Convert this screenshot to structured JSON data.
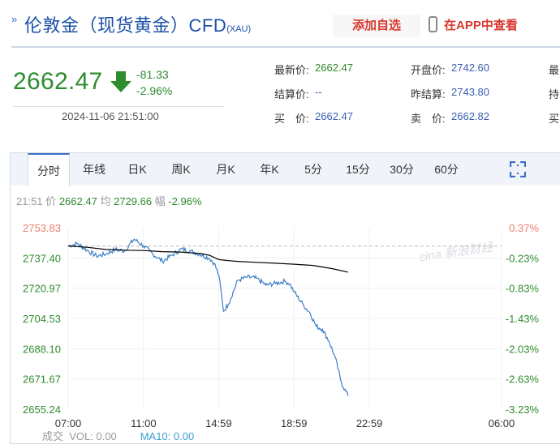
{
  "header": {
    "title": "伦敦金（现货黄金）CFD",
    "subtitle": "(XAU)",
    "add_watch_label": "添加自选",
    "app_label": "在APP中查看"
  },
  "quote": {
    "price": "2662.47",
    "change": "-81.33",
    "change_pct": "-2.96%",
    "datetime": "2024-11-06 21:51:00",
    "fields": [
      {
        "label": "最新价:",
        "value": "2662.47"
      },
      {
        "label": "开盘价:",
        "value": "2742.60"
      },
      {
        "label": "结算价:",
        "value": "--"
      },
      {
        "label": "昨结算:",
        "value": "2743.80"
      },
      {
        "label": "买　价:",
        "value": "2662.47"
      },
      {
        "label": "卖　价:",
        "value": "2662.82"
      }
    ],
    "cutoff_labels": [
      "最",
      "持",
      "买"
    ]
  },
  "tabs": [
    "分时",
    "年线",
    "日K",
    "周K",
    "月K",
    "年K",
    "5分",
    "15分",
    "30分",
    "60分"
  ],
  "active_tab": "分时",
  "infobar": {
    "time": "21:51",
    "price_label": "价",
    "price": "2662.47",
    "avg_label": "均",
    "avg": "2729.66",
    "amp_label": "幅",
    "amp": "-2.96%"
  },
  "watermark": "sina 新浪财经",
  "bottom": {
    "chengjiao": "成交",
    "vol": "VOL: 0.00",
    "ma10": "MA10: 0.00"
  },
  "colors": {
    "up": "#e8806e",
    "down": "#2e8b2e",
    "price_line": "#3b7ec7",
    "avg_line": "#000000"
  },
  "chart_data": {
    "type": "line",
    "x_ticks": [
      "07:00",
      "11:00",
      "14:59",
      "18:59",
      "22:59",
      "06:00"
    ],
    "y_ticks": [
      "2753.83",
      "2737.40",
      "2720.97",
      "2704.53",
      "2688.10",
      "2671.67",
      "2655.24"
    ],
    "y_pct_ticks": [
      "0.37%",
      "-0.23%",
      "-0.83%",
      "-1.43%",
      "-2.03%",
      "-2.63%",
      "-3.23%"
    ],
    "ylim": [
      2655.24,
      2753.83
    ],
    "prev_settle": 2743.8,
    "series": [
      {
        "name": "价",
        "x": [
          "07:00",
          "07:30",
          "08:00",
          "08:30",
          "09:00",
          "09:30",
          "10:00",
          "10:30",
          "11:00",
          "11:30",
          "12:00",
          "12:30",
          "13:00",
          "13:30",
          "14:00",
          "14:30",
          "14:45",
          "15:00",
          "15:15",
          "15:30",
          "16:00",
          "16:30",
          "17:00",
          "17:30",
          "18:00",
          "18:30",
          "18:45",
          "19:00",
          "19:30",
          "19:50",
          "20:10",
          "20:30",
          "20:50",
          "21:10",
          "21:30",
          "21:51"
        ],
        "values": [
          2743.9,
          2745.2,
          2741.6,
          2738.4,
          2739.5,
          2742.0,
          2741.2,
          2747.6,
          2743.9,
          2739.5,
          2735.6,
          2738.8,
          2742.2,
          2741.1,
          2739.3,
          2737.2,
          2734.5,
          2727.9,
          2708.4,
          2712.3,
          2725.2,
          2727.0,
          2726.3,
          2722.6,
          2723.6,
          2724.7,
          2723.4,
          2718.8,
          2711.6,
          2707.5,
          2700.2,
          2698.6,
          2692.3,
          2683.5,
          2669.7,
          2662.47
        ]
      },
      {
        "name": "均",
        "x": [
          "07:00",
          "08:00",
          "09:00",
          "10:00",
          "11:00",
          "12:00",
          "13:00",
          "14:00",
          "14:30",
          "15:00",
          "15:30",
          "16:00",
          "17:00",
          "18:00",
          "19:00",
          "20:00",
          "21:00",
          "21:51"
        ],
        "values": [
          2743.9,
          2743.2,
          2742.0,
          2741.6,
          2741.4,
          2740.8,
          2740.6,
          2739.8,
          2738.8,
          2736.5,
          2735.9,
          2735.5,
          2735.0,
          2734.5,
          2734.0,
          2733.3,
          2731.6,
          2729.66
        ]
      }
    ]
  }
}
